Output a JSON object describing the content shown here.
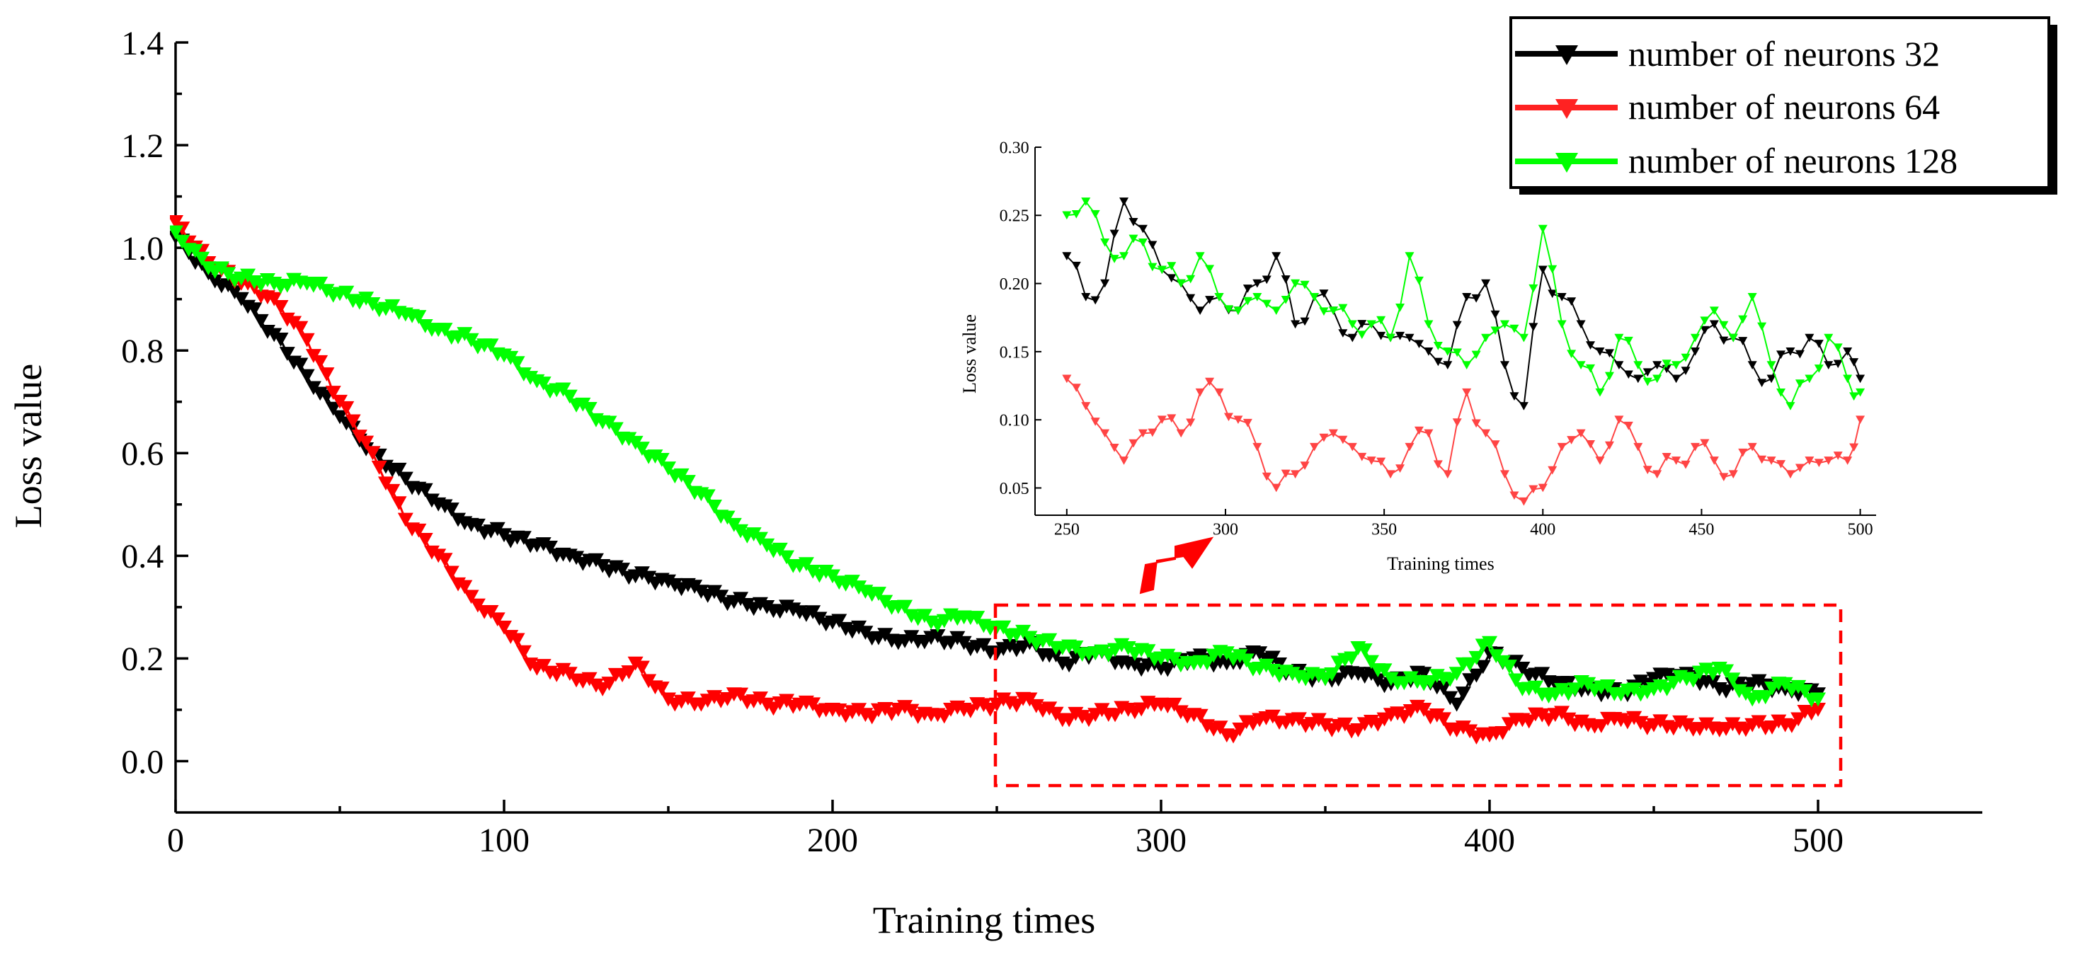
{
  "chart_data": {
    "type": "line",
    "xlabel": "Training times",
    "ylabel": "Loss value",
    "xlim": [
      0,
      550
    ],
    "ylim": [
      -0.1,
      1.4
    ],
    "x_ticks": [
      "0",
      "100",
      "200",
      "300",
      "400",
      "500"
    ],
    "y_ticks": [
      "0.0",
      "0.2",
      "0.4",
      "0.6",
      "0.8",
      "1.0",
      "1.2",
      "1.4"
    ],
    "legend_position": "top-right",
    "series": [
      {
        "name": "number of neurons 32",
        "color": "#000000",
        "marker": "triangle-down",
        "x": [
          0,
          10,
          20,
          30,
          40,
          50,
          60,
          70,
          80,
          90,
          100,
          110,
          120,
          130,
          140,
          150,
          160,
          170,
          180,
          190,
          200,
          210,
          220,
          230,
          240,
          250,
          260,
          270,
          280,
          290,
          300,
          310,
          320,
          330,
          340,
          350,
          360,
          370,
          380,
          390,
          400,
          410,
          420,
          430,
          440,
          450,
          460,
          470,
          480,
          490,
          500
        ],
        "y": [
          1.02,
          0.95,
          0.9,
          0.83,
          0.75,
          0.67,
          0.6,
          0.55,
          0.5,
          0.46,
          0.44,
          0.42,
          0.4,
          0.38,
          0.36,
          0.35,
          0.33,
          0.31,
          0.3,
          0.29,
          0.27,
          0.25,
          0.23,
          0.24,
          0.23,
          0.21,
          0.23,
          0.19,
          0.21,
          0.19,
          0.18,
          0.2,
          0.19,
          0.21,
          0.17,
          0.16,
          0.17,
          0.15,
          0.17,
          0.11,
          0.21,
          0.18,
          0.15,
          0.14,
          0.13,
          0.16,
          0.17,
          0.14,
          0.15,
          0.14,
          0.13
        ]
      },
      {
        "name": "number of neurons 64",
        "color": "#ff0000",
        "marker": "triangle-down",
        "x": [
          0,
          10,
          20,
          30,
          40,
          50,
          60,
          70,
          80,
          90,
          100,
          110,
          120,
          130,
          140,
          150,
          160,
          170,
          180,
          190,
          200,
          210,
          220,
          230,
          240,
          250,
          260,
          270,
          280,
          290,
          300,
          310,
          320,
          330,
          340,
          350,
          360,
          370,
          380,
          390,
          400,
          410,
          420,
          430,
          440,
          450,
          460,
          470,
          480,
          490,
          500
        ],
        "y": [
          1.05,
          0.97,
          0.93,
          0.9,
          0.82,
          0.7,
          0.6,
          0.47,
          0.4,
          0.32,
          0.26,
          0.18,
          0.17,
          0.14,
          0.19,
          0.12,
          0.11,
          0.13,
          0.11,
          0.11,
          0.1,
          0.09,
          0.1,
          0.09,
          0.1,
          0.11,
          0.12,
          0.08,
          0.09,
          0.1,
          0.11,
          0.09,
          0.05,
          0.08,
          0.08,
          0.07,
          0.06,
          0.09,
          0.1,
          0.06,
          0.05,
          0.08,
          0.09,
          0.07,
          0.08,
          0.07,
          0.07,
          0.06,
          0.07,
          0.07,
          0.1
        ]
      },
      {
        "name": "number of neurons 128",
        "color": "#00ff00",
        "marker": "triangle-down",
        "x": [
          0,
          10,
          20,
          30,
          40,
          50,
          60,
          70,
          80,
          90,
          100,
          110,
          120,
          130,
          140,
          150,
          160,
          170,
          180,
          190,
          200,
          210,
          220,
          230,
          240,
          250,
          260,
          270,
          280,
          290,
          300,
          310,
          320,
          330,
          340,
          350,
          360,
          370,
          380,
          390,
          400,
          410,
          420,
          430,
          440,
          450,
          460,
          470,
          480,
          490,
          500
        ],
        "y": [
          1.03,
          0.96,
          0.94,
          0.93,
          0.93,
          0.91,
          0.89,
          0.87,
          0.84,
          0.82,
          0.79,
          0.74,
          0.71,
          0.66,
          0.62,
          0.57,
          0.52,
          0.46,
          0.42,
          0.38,
          0.36,
          0.33,
          0.3,
          0.27,
          0.28,
          0.26,
          0.24,
          0.22,
          0.21,
          0.22,
          0.2,
          0.19,
          0.21,
          0.18,
          0.17,
          0.16,
          0.22,
          0.16,
          0.15,
          0.17,
          0.23,
          0.14,
          0.13,
          0.15,
          0.13,
          0.14,
          0.16,
          0.18,
          0.12,
          0.15,
          0.12
        ]
      }
    ],
    "inset": {
      "xlabel": "Training times",
      "ylabel": "Loss value",
      "xlim": [
        240,
        505
      ],
      "ylim": [
        0.03,
        0.3
      ],
      "x_ticks": [
        "250",
        "300",
        "350",
        "400",
        "450",
        "500"
      ],
      "y_ticks": [
        "0.05",
        "0.10",
        "0.15",
        "0.20",
        "0.25",
        "0.30"
      ],
      "series": [
        {
          "name": "number of neurons 32",
          "color": "#000000",
          "x": [
            250,
            256,
            262,
            268,
            274,
            280,
            286,
            292,
            298,
            304,
            310,
            316,
            322,
            328,
            334,
            340,
            346,
            352,
            358,
            364,
            370,
            376,
            382,
            388,
            394,
            400,
            406,
            412,
            418,
            424,
            430,
            436,
            442,
            448,
            454,
            460,
            466,
            472,
            478,
            484,
            490,
            496,
            500
          ],
          "y": [
            0.22,
            0.19,
            0.2,
            0.26,
            0.24,
            0.21,
            0.2,
            0.18,
            0.19,
            0.18,
            0.2,
            0.22,
            0.17,
            0.19,
            0.18,
            0.16,
            0.17,
            0.16,
            0.16,
            0.15,
            0.14,
            0.19,
            0.2,
            0.14,
            0.11,
            0.21,
            0.19,
            0.17,
            0.15,
            0.14,
            0.13,
            0.14,
            0.13,
            0.15,
            0.17,
            0.16,
            0.14,
            0.13,
            0.15,
            0.16,
            0.14,
            0.15,
            0.13
          ]
        },
        {
          "name": "number of neurons 64",
          "color": "#ff4444",
          "x": [
            250,
            256,
            262,
            268,
            274,
            280,
            286,
            292,
            298,
            304,
            310,
            316,
            322,
            328,
            334,
            340,
            346,
            352,
            358,
            364,
            370,
            376,
            382,
            388,
            394,
            400,
            406,
            412,
            418,
            424,
            430,
            436,
            442,
            448,
            454,
            460,
            466,
            472,
            478,
            484,
            490,
            496,
            500
          ],
          "y": [
            0.13,
            0.11,
            0.09,
            0.07,
            0.09,
            0.1,
            0.09,
            0.12,
            0.12,
            0.1,
            0.08,
            0.05,
            0.06,
            0.08,
            0.09,
            0.08,
            0.07,
            0.06,
            0.08,
            0.09,
            0.06,
            0.12,
            0.09,
            0.06,
            0.04,
            0.05,
            0.08,
            0.09,
            0.07,
            0.1,
            0.08,
            0.06,
            0.07,
            0.08,
            0.07,
            0.06,
            0.08,
            0.07,
            0.06,
            0.07,
            0.07,
            0.07,
            0.1
          ]
        },
        {
          "name": "number of neurons 128",
          "color": "#00ff00",
          "x": [
            250,
            256,
            262,
            268,
            274,
            280,
            286,
            292,
            298,
            304,
            310,
            316,
            322,
            328,
            334,
            340,
            346,
            352,
            358,
            364,
            370,
            376,
            382,
            388,
            394,
            400,
            406,
            412,
            418,
            424,
            430,
            436,
            442,
            448,
            454,
            460,
            466,
            472,
            478,
            484,
            490,
            496,
            500
          ],
          "y": [
            0.25,
            0.26,
            0.23,
            0.22,
            0.23,
            0.21,
            0.2,
            0.22,
            0.19,
            0.18,
            0.19,
            0.18,
            0.2,
            0.19,
            0.18,
            0.17,
            0.17,
            0.16,
            0.22,
            0.17,
            0.15,
            0.14,
            0.16,
            0.17,
            0.16,
            0.24,
            0.17,
            0.14,
            0.12,
            0.16,
            0.14,
            0.13,
            0.14,
            0.16,
            0.18,
            0.16,
            0.19,
            0.14,
            0.11,
            0.13,
            0.16,
            0.13,
            0.12
          ]
        }
      ]
    }
  }
}
